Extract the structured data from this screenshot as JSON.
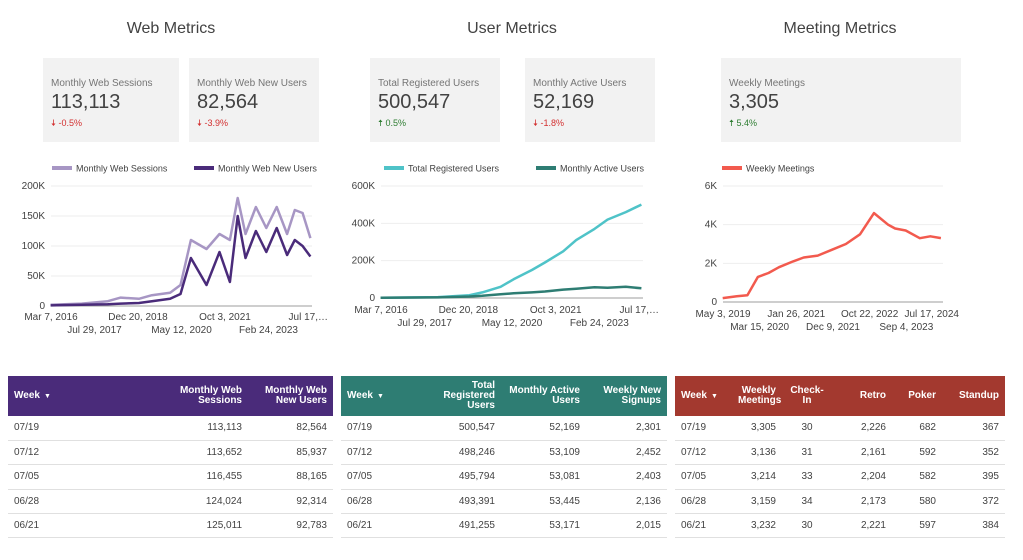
{
  "sections": {
    "web": {
      "title": "Web Metrics"
    },
    "user": {
      "title": "User Metrics"
    },
    "meeting": {
      "title": "Meeting Metrics"
    }
  },
  "cards": [
    {
      "label": "Monthly Web Sessions",
      "value": "113,113",
      "change": "-0.5%",
      "direction": "down"
    },
    {
      "label": "Monthly Web New Users",
      "value": "82,564",
      "change": "-3.9%",
      "direction": "down"
    },
    {
      "label": "Total Registered Users",
      "value": "500,547",
      "change": "0.5%",
      "direction": "up"
    },
    {
      "label": "Monthly Active Users",
      "value": "52,169",
      "change": "-1.8%",
      "direction": "down"
    },
    {
      "label": "Weekly Meetings",
      "value": "3,305",
      "change": "5.4%",
      "direction": "up"
    }
  ],
  "icons": {
    "down": "arrow-down-icon",
    "up": "arrow-up-icon",
    "sort": "sort-down-icon"
  },
  "colors": {
    "web_sessions": "#a796c4",
    "web_new_users": "#4a2b7a",
    "registered_users": "#4fc3c8",
    "active_users": "#2e7d73",
    "meetings": "#f25a4e",
    "down": "#d32f2f",
    "up": "#2e7d32"
  },
  "chart_data": [
    {
      "type": "line",
      "title": "",
      "x_tick_labels": [
        "Mar 7, 2016",
        "Jul 29, 2017",
        "Dec 20, 2018",
        "May 12, 2020",
        "Oct 3, 2021",
        "Feb 24, 2023",
        "Jul 17,…"
      ],
      "y_tick_labels": [
        "0",
        "50K",
        "100K",
        "150K",
        "200K"
      ],
      "ylim": [
        0,
        200000
      ],
      "legend": "top",
      "series": [
        {
          "name": "Monthly Web Sessions",
          "x": [
            "2016-03",
            "2017-03",
            "2018-01",
            "2018-06",
            "2019-01",
            "2019-06",
            "2020-01",
            "2020-05",
            "2020-09",
            "2021-03",
            "2021-08",
            "2021-12",
            "2022-03",
            "2022-06",
            "2022-10",
            "2023-02",
            "2023-06",
            "2023-10",
            "2024-01",
            "2024-04",
            "2024-07"
          ],
          "values": [
            2000,
            4000,
            8000,
            14000,
            12000,
            18000,
            22000,
            35000,
            110000,
            95000,
            120000,
            110000,
            180000,
            120000,
            165000,
            130000,
            165000,
            120000,
            160000,
            155000,
            113113
          ]
        },
        {
          "name": "Monthly Web New Users",
          "x": [
            "2016-03",
            "2017-03",
            "2018-01",
            "2018-06",
            "2019-01",
            "2019-06",
            "2020-01",
            "2020-05",
            "2020-09",
            "2021-03",
            "2021-08",
            "2021-12",
            "2022-03",
            "2022-06",
            "2022-10",
            "2023-02",
            "2023-06",
            "2023-10",
            "2024-01",
            "2024-04",
            "2024-07"
          ],
          "values": [
            1000,
            2000,
            3000,
            4000,
            5000,
            8000,
            12000,
            20000,
            80000,
            35000,
            90000,
            40000,
            150000,
            80000,
            125000,
            90000,
            130000,
            85000,
            110000,
            100000,
            82564
          ]
        }
      ]
    },
    {
      "type": "line",
      "title": "",
      "x_tick_labels": [
        "Mar 7, 2016",
        "Jul 29, 2017",
        "Dec 20, 2018",
        "May 12, 2020",
        "Oct 3, 2021",
        "Feb 24, 2023",
        "Jul 17,…"
      ],
      "y_tick_labels": [
        "0",
        "200K",
        "400K",
        "600K"
      ],
      "ylim": [
        0,
        600000
      ],
      "legend": "top",
      "series": [
        {
          "name": "Total Registered Users",
          "x": [
            "2016-03",
            "2018-01",
            "2019-01",
            "2019-06",
            "2020-01",
            "2020-06",
            "2021-01",
            "2021-06",
            "2022-01",
            "2022-06",
            "2023-01",
            "2023-06",
            "2024-01",
            "2024-07"
          ],
          "values": [
            1000,
            5000,
            15000,
            30000,
            60000,
            100000,
            150000,
            190000,
            250000,
            310000,
            370000,
            420000,
            460000,
            500547
          ]
        },
        {
          "name": "Monthly Active Users",
          "x": [
            "2016-03",
            "2018-01",
            "2019-01",
            "2019-06",
            "2020-01",
            "2020-06",
            "2021-01",
            "2021-06",
            "2022-01",
            "2022-06",
            "2023-01",
            "2023-06",
            "2024-01",
            "2024-07"
          ],
          "values": [
            1000,
            3000,
            8000,
            12000,
            20000,
            25000,
            30000,
            35000,
            45000,
            50000,
            58000,
            55000,
            60000,
            52169
          ]
        }
      ]
    },
    {
      "type": "line",
      "title": "",
      "x_tick_labels": [
        "May 3, 2019",
        "Mar 15, 2020",
        "Jan 26, 2021",
        "Dec 9, 2021",
        "Oct 22, 2022",
        "Sep 4, 2023",
        "Jul 17, 2024"
      ],
      "y_tick_labels": [
        "0",
        "2K",
        "4K",
        "6K"
      ],
      "ylim": [
        0,
        6000
      ],
      "legend": "top",
      "series": [
        {
          "name": "Weekly Meetings",
          "x": [
            "2019-05",
            "2019-09",
            "2019-12",
            "2020-03",
            "2020-06",
            "2020-09",
            "2021-01",
            "2021-04",
            "2021-08",
            "2021-12",
            "2022-04",
            "2022-08",
            "2022-12",
            "2023-04",
            "2023-06",
            "2023-09",
            "2024-01",
            "2024-04",
            "2024-07"
          ],
          "values": [
            200,
            300,
            350,
            1300,
            1500,
            1800,
            2100,
            2300,
            2400,
            2700,
            3000,
            3500,
            4600,
            4000,
            3800,
            3700,
            3300,
            3400,
            3305
          ]
        }
      ]
    }
  ],
  "tables": {
    "web": {
      "headers": [
        "Week",
        "Monthly Web Sessions",
        "Monthly Web New Users"
      ],
      "rows": [
        [
          "07/19",
          "113,113",
          "82,564"
        ],
        [
          "07/12",
          "113,652",
          "85,937"
        ],
        [
          "07/05",
          "116,455",
          "88,165"
        ],
        [
          "06/28",
          "124,024",
          "92,314"
        ],
        [
          "06/21",
          "125,011",
          "92,783"
        ]
      ]
    },
    "user": {
      "headers": [
        "Week",
        "Total Registered Users",
        "Monthly Active Users",
        "Weekly New Signups"
      ],
      "rows": [
        [
          "07/19",
          "500,547",
          "52,169",
          "2,301"
        ],
        [
          "07/12",
          "498,246",
          "53,109",
          "2,452"
        ],
        [
          "07/05",
          "495,794",
          "53,081",
          "2,403"
        ],
        [
          "06/28",
          "493,391",
          "53,445",
          "2,136"
        ],
        [
          "06/21",
          "491,255",
          "53,171",
          "2,015"
        ]
      ]
    },
    "meeting": {
      "headers": [
        "Week",
        "Weekly Meetings",
        "Check-In",
        "Retro",
        "Poker",
        "Standup"
      ],
      "rows": [
        [
          "07/19",
          "3,305",
          "30",
          "2,226",
          "682",
          "367"
        ],
        [
          "07/12",
          "3,136",
          "31",
          "2,161",
          "592",
          "352"
        ],
        [
          "07/05",
          "3,214",
          "33",
          "2,204",
          "582",
          "395"
        ],
        [
          "06/28",
          "3,159",
          "34",
          "2,173",
          "580",
          "372"
        ],
        [
          "06/21",
          "3,232",
          "30",
          "2,221",
          "597",
          "384"
        ]
      ]
    }
  }
}
